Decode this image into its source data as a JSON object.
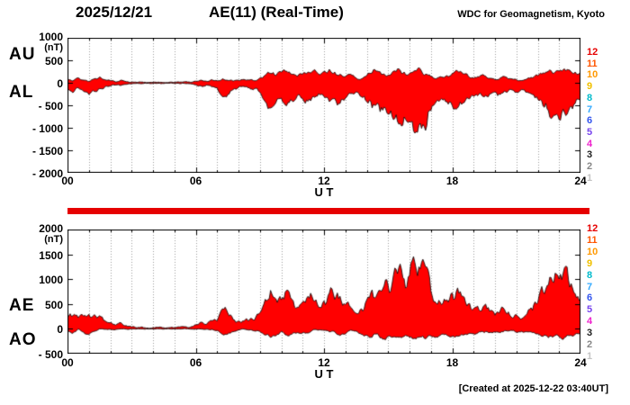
{
  "header": {
    "date": "2025/12/21",
    "title": "AE(11) (Real-Time)",
    "source": "WDC for Geomagnetism, Kyoto"
  },
  "footer": {
    "created_note": "[Created at 2025-12-22 03:40UT]"
  },
  "colors": {
    "fill": "#ff0000",
    "separator": "#e60000",
    "axis": "#000000",
    "grid": "#9a9a9a"
  },
  "legend": {
    "items": [
      {
        "label": "12",
        "color": "#e60000"
      },
      {
        "label": "11",
        "color": "#ff5500"
      },
      {
        "label": "10",
        "color": "#ff9900"
      },
      {
        "label": "9",
        "color": "#f0c000"
      },
      {
        "label": "8",
        "color": "#00bbcc"
      },
      {
        "label": "7",
        "color": "#33aaff"
      },
      {
        "label": "6",
        "color": "#3355ee"
      },
      {
        "label": "5",
        "color": "#7744ee"
      },
      {
        "label": "4",
        "color": "#ee22cc"
      },
      {
        "label": "3",
        "color": "#222222"
      },
      {
        "label": "2",
        "color": "#888888"
      },
      {
        "label": "1",
        "color": "#c4c4c4"
      }
    ]
  },
  "chart_data": [
    {
      "type": "area",
      "name": "AU / AL indices",
      "ylim": [
        -2000,
        1000
      ],
      "yticks": [
        1000,
        500,
        0,
        -500,
        -1000,
        -1500,
        -2000
      ],
      "ytick_labels": [
        "1000",
        "500",
        "0",
        "- 500",
        "- 1000",
        "- 1500",
        "- 2000"
      ],
      "y_unit": "(nT)",
      "xlim": [
        0,
        24
      ],
      "xticks": [
        0,
        6,
        12,
        18,
        24
      ],
      "xtick_labels": [
        "00",
        "06",
        "12",
        "18",
        "24"
      ],
      "xlabel": "U T",
      "x_step_hours": 0.25,
      "grid": "hourly-vertical",
      "series": [
        {
          "name": "AU",
          "values": [
            80,
            40,
            110,
            60,
            30,
            90,
            130,
            70,
            50,
            20,
            60,
            25,
            15,
            8,
            18,
            6,
            10,
            15,
            5,
            12,
            8,
            15,
            25,
            12,
            35,
            60,
            35,
            70,
            45,
            90,
            55,
            35,
            55,
            75,
            60,
            45,
            110,
            170,
            210,
            160,
            240,
            260,
            190,
            140,
            190,
            240,
            270,
            190,
            250,
            300,
            240,
            190,
            140,
            190,
            110,
            90,
            160,
            220,
            260,
            190,
            170,
            260,
            310,
            240,
            210,
            270,
            310,
            190,
            140,
            90,
            130,
            160,
            210,
            260,
            200,
            150,
            100,
            130,
            160,
            100,
            70,
            110,
            130,
            90,
            70,
            50,
            90,
            110,
            160,
            220,
            260,
            210,
            260,
            310,
            280,
            240,
            200
          ]
        },
        {
          "name": "AL",
          "values": [
            -160,
            -220,
            -110,
            -190,
            -260,
            -190,
            -130,
            -90,
            -70,
            -50,
            -60,
            -35,
            -20,
            -12,
            -18,
            -10,
            -14,
            -10,
            -16,
            -10,
            -14,
            -20,
            -16,
            -22,
            -45,
            -70,
            -50,
            -90,
            -110,
            -310,
            -260,
            -150,
            -100,
            -80,
            -110,
            -130,
            -210,
            -420,
            -560,
            -440,
            -340,
            -510,
            -400,
            -290,
            -350,
            -410,
            -300,
            -240,
            -310,
            -420,
            -350,
            -460,
            -340,
            -240,
            -200,
            -310,
            -420,
            -560,
            -450,
            -610,
            -700,
            -820,
            -920,
            -760,
            -860,
            -1120,
            -900,
            -1060,
            -620,
            -420,
            -350,
            -420,
            -510,
            -560,
            -450,
            -350,
            -300,
            -250,
            -310,
            -250,
            -200,
            -260,
            -200,
            -150,
            -210,
            -150,
            -210,
            -260,
            -360,
            -520,
            -620,
            -720,
            -820,
            -660,
            -550,
            -460,
            -400
          ]
        }
      ]
    },
    {
      "type": "area",
      "name": "AE / AO indices",
      "ylim": [
        -500,
        2000
      ],
      "yticks": [
        2000,
        1500,
        1000,
        500,
        0,
        -500
      ],
      "ytick_labels": [
        "2000",
        "1500",
        "1000",
        "500",
        "0",
        "- 500"
      ],
      "y_unit": "(nT)",
      "xlim": [
        0,
        24
      ],
      "xticks": [
        0,
        6,
        12,
        18,
        24
      ],
      "xtick_labels": [
        "00",
        "06",
        "12",
        "18",
        "24"
      ],
      "xlabel": "U T",
      "x_step_hours": 0.25,
      "grid": "hourly-vertical",
      "series": [
        {
          "name": "AE",
          "values": [
            240,
            265,
            225,
            255,
            295,
            285,
            265,
            165,
            125,
            75,
            125,
            65,
            38,
            22,
            38,
            18,
            26,
            28,
            22,
            24,
            24,
            38,
            44,
            36,
            82,
            135,
            88,
            165,
            158,
            405,
            318,
            188,
            158,
            158,
            172,
            178,
            325,
            595,
            775,
            605,
            585,
            775,
            595,
            435,
            545,
            655,
            575,
            435,
            565,
            725,
            595,
            655,
            485,
            435,
            315,
            405,
            585,
            785,
            715,
            805,
            875,
            1085,
            1235,
            1005,
            1075,
            1340,
            1210,
            1250,
            765,
            515,
            485,
            585,
            725,
            825,
            655,
            505,
            405,
            385,
            475,
            355,
            275,
            375,
            335,
            245,
            285,
            205,
            305,
            375,
            525,
            745,
            885,
            935,
            1005,
            1230,
            840,
            705,
            605
          ]
        },
        {
          "name": "AO",
          "values": [
            -40,
            -90,
            0,
            -65,
            -115,
            -50,
            0,
            -10,
            -10,
            -15,
            0,
            -5,
            -3,
            -2,
            0,
            -2,
            -2,
            3,
            -6,
            1,
            -3,
            -3,
            5,
            -5,
            -5,
            -5,
            -8,
            -10,
            -33,
            -110,
            -103,
            -58,
            -23,
            -3,
            -25,
            -43,
            -50,
            -125,
            -175,
            -140,
            -50,
            -125,
            -105,
            -75,
            -80,
            -85,
            -15,
            -25,
            -30,
            -60,
            -55,
            -135,
            -100,
            -25,
            -45,
            -110,
            -130,
            -170,
            -95,
            -210,
            -150,
            -160,
            -170,
            -150,
            -170,
            -190,
            -160,
            -200,
            -140,
            -165,
            -110,
            -130,
            -150,
            -150,
            -125,
            -100,
            -100,
            -60,
            -75,
            -75,
            -65,
            -75,
            -35,
            -30,
            -70,
            -50,
            -60,
            -75,
            -100,
            -150,
            -180,
            -150,
            -160,
            -175,
            -135,
            -110,
            -100
          ]
        }
      ]
    }
  ]
}
